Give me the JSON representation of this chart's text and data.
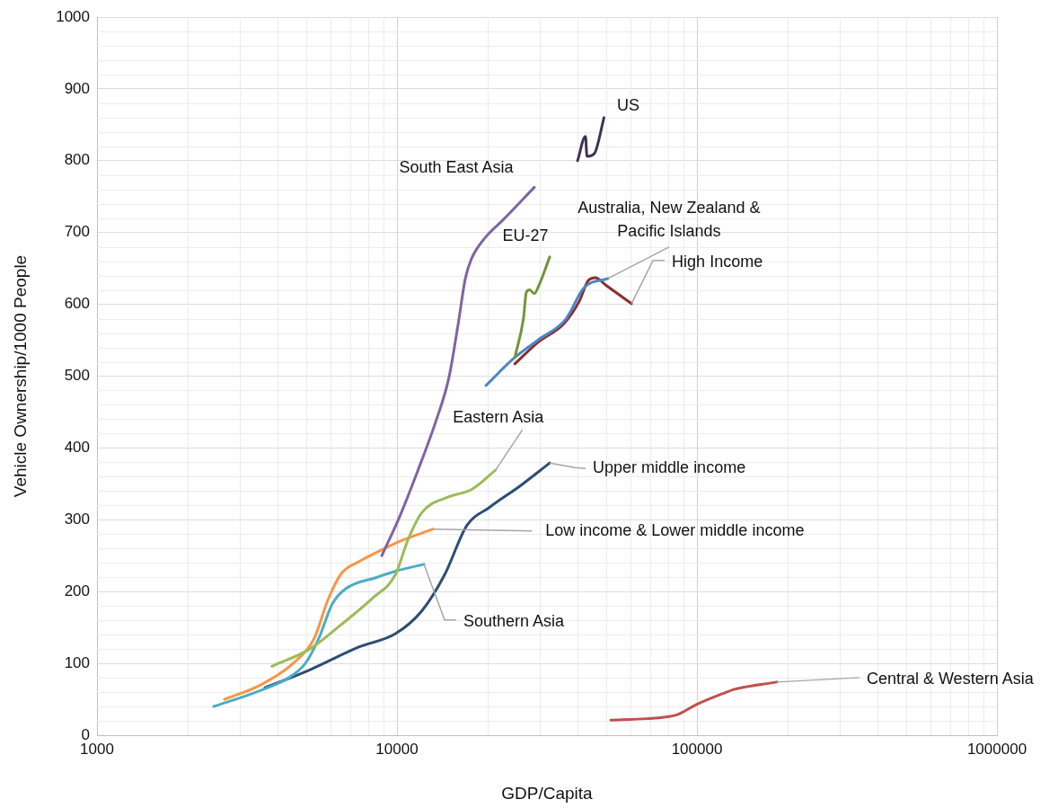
{
  "chart_data": {
    "type": "line",
    "xlabel": "GDP/Capita",
    "ylabel": "Vehicle Ownership/1000 People",
    "log": "x",
    "grid": true,
    "xlim": [
      1000,
      1000000
    ],
    "xticks": [
      1000,
      10000,
      100000,
      1000000
    ],
    "ylim": [
      0,
      1000
    ],
    "yticks": [
      0,
      100,
      200,
      300,
      400,
      500,
      600,
      700,
      800,
      900,
      1000
    ],
    "series": [
      {
        "name": "South East Asia",
        "color": "#8064a2",
        "x": [
          8900,
          10200,
          11700,
          13450,
          14900,
          16000,
          16900,
          17700,
          19600,
          22500,
          28700
        ],
        "values": [
          250,
          304,
          367,
          436,
          498,
          573,
          636,
          663,
          692,
          717,
          763
        ]
      },
      {
        "name": "US",
        "color": "#403152",
        "x": [
          40000,
          42500,
          43000,
          45500,
          49000
        ],
        "values": [
          800,
          834,
          806,
          810,
          860
        ]
      },
      {
        "name": "EU-27",
        "color": "#77933c",
        "x": [
          24700,
          26400,
          27000,
          27700,
          28700,
          29700,
          32300
        ],
        "values": [
          526,
          580,
          617,
          620,
          615,
          626,
          666
        ]
      },
      {
        "name": "Australia, New Zealand & Pacific Islands",
        "color": "#4a86c8",
        "x": [
          19800,
          24700,
          29700,
          36500,
          42000,
          50500
        ],
        "values": [
          487,
          526,
          551,
          579,
          623,
          636
        ]
      },
      {
        "name": "High Income",
        "color": "#8b2d2d",
        "x": [
          24700,
          29700,
          36000,
          40500,
          43400,
          45900,
          49900,
          60500
        ],
        "values": [
          517,
          548,
          573,
          604,
          633,
          637,
          626,
          601
        ]
      },
      {
        "name": "Eastern Asia",
        "color": "#9bbb59",
        "x": [
          3830,
          5120,
          6520,
          8300,
          9860,
          10900,
          12100,
          14900,
          17700,
          21300
        ],
        "values": [
          96,
          120,
          154,
          191,
          223,
          273,
          310,
          332,
          342,
          369
        ]
      },
      {
        "name": "Low income & Lower middle income",
        "color": "#f79646",
        "x": [
          2660,
          3510,
          4620,
          5300,
          5880,
          6520,
          7490,
          8590,
          10200,
          13200
        ],
        "values": [
          50,
          70,
          104,
          135,
          188,
          225,
          242,
          255,
          270,
          287
        ]
      },
      {
        "name": "Southern Asia",
        "color": "#4bacc6",
        "x": [
          2450,
          3390,
          4310,
          4950,
          5490,
          6090,
          6750,
          8590,
          10000,
          12300
        ],
        "values": [
          40,
          60,
          79,
          100,
          135,
          183,
          204,
          220,
          229,
          238
        ]
      },
      {
        "name": "Upper middle income",
        "color": "#2c4d75",
        "x": [
          3630,
          5120,
          7490,
          9860,
          12100,
          14400,
          17100,
          20300,
          25900,
          32300
        ],
        "values": [
          66,
          91,
          123,
          141,
          173,
          223,
          292,
          317,
          348,
          379
        ]
      },
      {
        "name": "Central & Western Asia",
        "color": "#c0504d",
        "x": [
          51600,
          68000,
          80700,
          86500,
          100000,
          122000,
          133600,
          184600
        ],
        "values": [
          21,
          23,
          26,
          29,
          43,
          58,
          64,
          74
        ]
      }
    ]
  }
}
